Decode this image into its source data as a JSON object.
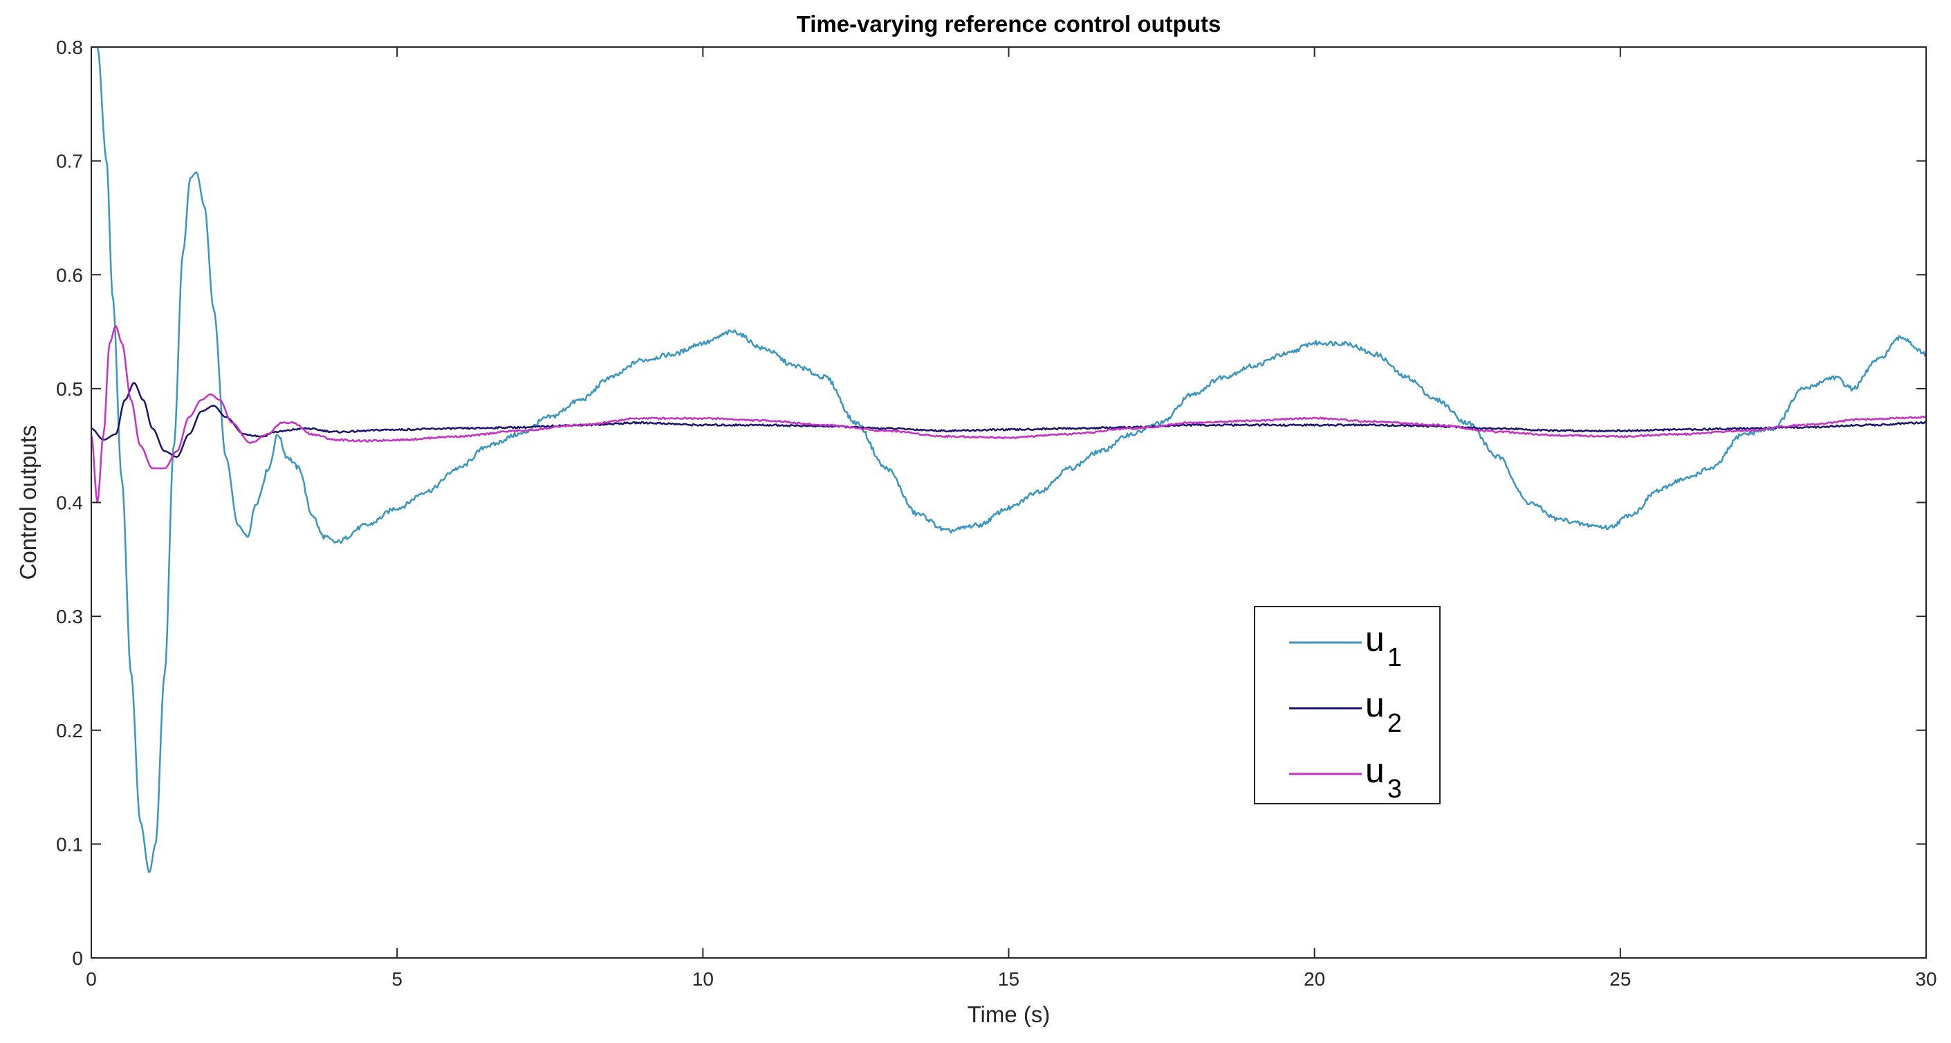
{
  "chart_data": {
    "type": "line",
    "title": "Time-varying reference control outputs",
    "xlabel": "Time (s)",
    "ylabel": "Control outputs",
    "xlim": [
      0,
      30
    ],
    "ylim": [
      0,
      0.8
    ],
    "xticks": [
      0,
      5,
      10,
      15,
      20,
      25,
      30
    ],
    "xtick_labels": [
      "0",
      "5",
      "10",
      "15",
      "20",
      "25",
      "30"
    ],
    "yticks": [
      0,
      0.1,
      0.2,
      0.3,
      0.4,
      0.5,
      0.6,
      0.7,
      0.8
    ],
    "ytick_labels": [
      "0",
      "0.1",
      "0.2",
      "0.3",
      "0.4",
      "0.5",
      "0.6",
      "0.7",
      "0.8"
    ],
    "grid": false,
    "legend_position": "lower-right",
    "series": [
      {
        "name": "u1",
        "label_main": "u",
        "label_sub": "1",
        "color": "#3a96c0",
        "points": [
          [
            0,
            0.8
          ],
          [
            0.1,
            0.8
          ],
          [
            0.25,
            0.7
          ],
          [
            0.35,
            0.58
          ],
          [
            0.5,
            0.42
          ],
          [
            0.65,
            0.25
          ],
          [
            0.8,
            0.12
          ],
          [
            0.95,
            0.075
          ],
          [
            1.05,
            0.1
          ],
          [
            1.2,
            0.25
          ],
          [
            1.35,
            0.45
          ],
          [
            1.5,
            0.62
          ],
          [
            1.62,
            0.685
          ],
          [
            1.72,
            0.69
          ],
          [
            1.85,
            0.66
          ],
          [
            2.0,
            0.57
          ],
          [
            2.2,
            0.44
          ],
          [
            2.4,
            0.38
          ],
          [
            2.55,
            0.37
          ],
          [
            2.7,
            0.4
          ],
          [
            2.9,
            0.43
          ],
          [
            3.05,
            0.46
          ],
          [
            3.2,
            0.44
          ],
          [
            3.4,
            0.43
          ],
          [
            3.6,
            0.39
          ],
          [
            3.8,
            0.37
          ],
          [
            4.0,
            0.365
          ],
          [
            4.5,
            0.38
          ],
          [
            5.0,
            0.395
          ],
          [
            5.5,
            0.41
          ],
          [
            6.0,
            0.43
          ],
          [
            6.5,
            0.45
          ],
          [
            7.0,
            0.46
          ],
          [
            7.5,
            0.475
          ],
          [
            8.0,
            0.49
          ],
          [
            8.5,
            0.51
          ],
          [
            9.0,
            0.525
          ],
          [
            9.5,
            0.53
          ],
          [
            10.0,
            0.54
          ],
          [
            10.5,
            0.55
          ],
          [
            11.0,
            0.535
          ],
          [
            11.5,
            0.52
          ],
          [
            12.0,
            0.51
          ],
          [
            12.5,
            0.47
          ],
          [
            13.0,
            0.43
          ],
          [
            13.5,
            0.39
          ],
          [
            14.0,
            0.375
          ],
          [
            14.5,
            0.38
          ],
          [
            15.0,
            0.395
          ],
          [
            15.5,
            0.41
          ],
          [
            16.0,
            0.43
          ],
          [
            16.5,
            0.445
          ],
          [
            17.0,
            0.46
          ],
          [
            17.5,
            0.47
          ],
          [
            18.0,
            0.495
          ],
          [
            18.5,
            0.51
          ],
          [
            19.0,
            0.52
          ],
          [
            19.5,
            0.53
          ],
          [
            20.0,
            0.54
          ],
          [
            20.5,
            0.54
          ],
          [
            21.0,
            0.53
          ],
          [
            21.5,
            0.51
          ],
          [
            22.0,
            0.49
          ],
          [
            22.5,
            0.47
          ],
          [
            23.0,
            0.44
          ],
          [
            23.5,
            0.4
          ],
          [
            24.0,
            0.385
          ],
          [
            24.5,
            0.38
          ],
          [
            24.8,
            0.378
          ],
          [
            25.2,
            0.39
          ],
          [
            25.6,
            0.41
          ],
          [
            26.0,
            0.42
          ],
          [
            26.5,
            0.43
          ],
          [
            27.0,
            0.46
          ],
          [
            27.5,
            0.465
          ],
          [
            28.0,
            0.5
          ],
          [
            28.5,
            0.51
          ],
          [
            28.8,
            0.5
          ],
          [
            29.2,
            0.525
          ],
          [
            29.6,
            0.545
          ],
          [
            30.0,
            0.53
          ]
        ]
      },
      {
        "name": "u2",
        "label_main": "u",
        "label_sub": "2",
        "color": "#1a1470",
        "points": [
          [
            0,
            0.465
          ],
          [
            0.2,
            0.455
          ],
          [
            0.4,
            0.46
          ],
          [
            0.55,
            0.49
          ],
          [
            0.7,
            0.505
          ],
          [
            0.85,
            0.49
          ],
          [
            1.0,
            0.465
          ],
          [
            1.2,
            0.445
          ],
          [
            1.4,
            0.44
          ],
          [
            1.6,
            0.46
          ],
          [
            1.8,
            0.48
          ],
          [
            2.0,
            0.485
          ],
          [
            2.2,
            0.475
          ],
          [
            2.5,
            0.46
          ],
          [
            2.8,
            0.458
          ],
          [
            3.0,
            0.462
          ],
          [
            3.5,
            0.465
          ],
          [
            4.0,
            0.462
          ],
          [
            5.0,
            0.464
          ],
          [
            6.0,
            0.465
          ],
          [
            7.0,
            0.466
          ],
          [
            8.0,
            0.468
          ],
          [
            9.0,
            0.47
          ],
          [
            10.0,
            0.468
          ],
          [
            11.0,
            0.468
          ],
          [
            12.0,
            0.467
          ],
          [
            13.0,
            0.465
          ],
          [
            14.0,
            0.463
          ],
          [
            15.0,
            0.464
          ],
          [
            16.0,
            0.465
          ],
          [
            17.0,
            0.466
          ],
          [
            18.0,
            0.468
          ],
          [
            19.0,
            0.468
          ],
          [
            20.0,
            0.468
          ],
          [
            21.0,
            0.468
          ],
          [
            22.0,
            0.467
          ],
          [
            23.0,
            0.465
          ],
          [
            24.0,
            0.463
          ],
          [
            25.0,
            0.463
          ],
          [
            26.0,
            0.464
          ],
          [
            27.0,
            0.465
          ],
          [
            28.0,
            0.466
          ],
          [
            29.0,
            0.468
          ],
          [
            30.0,
            0.47
          ]
        ]
      },
      {
        "name": "u3",
        "label_main": "u",
        "label_sub": "3",
        "color": "#c632c6",
        "points": [
          [
            0,
            0.46
          ],
          [
            0.1,
            0.4
          ],
          [
            0.2,
            0.46
          ],
          [
            0.3,
            0.54
          ],
          [
            0.4,
            0.555
          ],
          [
            0.5,
            0.54
          ],
          [
            0.65,
            0.49
          ],
          [
            0.8,
            0.45
          ],
          [
            1.0,
            0.43
          ],
          [
            1.2,
            0.43
          ],
          [
            1.4,
            0.445
          ],
          [
            1.6,
            0.475
          ],
          [
            1.8,
            0.49
          ],
          [
            1.95,
            0.495
          ],
          [
            2.1,
            0.49
          ],
          [
            2.3,
            0.47
          ],
          [
            2.6,
            0.452
          ],
          [
            2.9,
            0.46
          ],
          [
            3.1,
            0.47
          ],
          [
            3.3,
            0.47
          ],
          [
            3.6,
            0.46
          ],
          [
            4.0,
            0.455
          ],
          [
            4.5,
            0.454
          ],
          [
            5.0,
            0.455
          ],
          [
            6.0,
            0.458
          ],
          [
            7.0,
            0.463
          ],
          [
            8.0,
            0.468
          ],
          [
            9.0,
            0.474
          ],
          [
            10.0,
            0.474
          ],
          [
            11.0,
            0.472
          ],
          [
            12.0,
            0.468
          ],
          [
            13.0,
            0.463
          ],
          [
            14.0,
            0.458
          ],
          [
            15.0,
            0.457
          ],
          [
            16.0,
            0.46
          ],
          [
            17.0,
            0.465
          ],
          [
            18.0,
            0.47
          ],
          [
            19.0,
            0.472
          ],
          [
            20.0,
            0.474
          ],
          [
            21.0,
            0.471
          ],
          [
            22.0,
            0.468
          ],
          [
            23.0,
            0.462
          ],
          [
            24.0,
            0.459
          ],
          [
            25.0,
            0.458
          ],
          [
            26.0,
            0.46
          ],
          [
            27.0,
            0.463
          ],
          [
            28.0,
            0.468
          ],
          [
            29.0,
            0.473
          ],
          [
            30.0,
            0.475
          ]
        ]
      }
    ]
  }
}
